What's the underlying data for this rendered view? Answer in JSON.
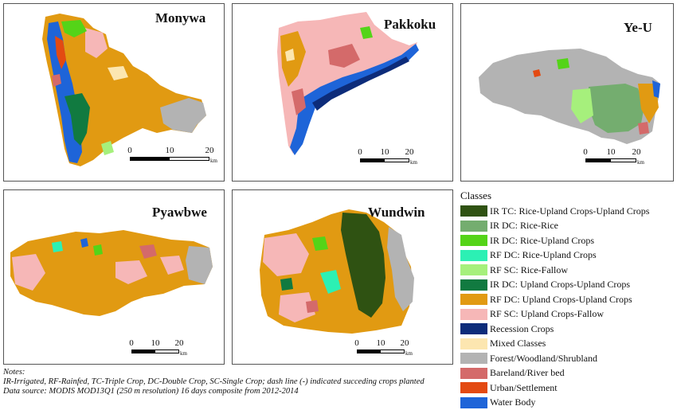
{
  "panels": [
    {
      "name": "Monywa",
      "scale": [
        "0",
        "10",
        "20"
      ],
      "unit": "km"
    },
    {
      "name": "Pakkoku",
      "scale": [
        "0",
        "10",
        "20"
      ],
      "unit": "km"
    },
    {
      "name": "Ye-U",
      "scale": [
        "0",
        "10",
        "20"
      ],
      "unit": "km"
    },
    {
      "name": "Pyawbwe",
      "scale": [
        "0",
        "10",
        "20"
      ],
      "unit": "km"
    },
    {
      "name": "Wundwin",
      "scale": [
        "0",
        "10",
        "20"
      ],
      "unit": "km"
    }
  ],
  "legend": {
    "title": "Classes",
    "items": [
      {
        "label": "IR TC: Rice-Upland Crops-Upland Crops",
        "color": "#2f5212"
      },
      {
        "label": "IR DC: Rice-Rice",
        "color": "#74ad6f"
      },
      {
        "label": "IR DC: Rice-Upland Crops",
        "color": "#54d418"
      },
      {
        "label": "RF DC: Rice-Upland Crops",
        "color": "#2cf0b4"
      },
      {
        "label": "RF SC: Rice-Fallow",
        "color": "#a6f07c"
      },
      {
        "label": "IR DC: Upland Crops-Upland Crops",
        "color": "#117a40"
      },
      {
        "label": "RF DC: Upland Crops-Upland Crops",
        "color": "#e19a12"
      },
      {
        "label": "RF SC: Upland Crops-Fallow",
        "color": "#f6b7b7"
      },
      {
        "label": "Recession Crops",
        "color": "#0d2c7a"
      },
      {
        "label": "Mixed Classes",
        "color": "#fce6b0"
      },
      {
        "label": "Forest/Woodland/Shrubland",
        "color": "#b3b3b3"
      },
      {
        "label": "Bareland/River bed",
        "color": "#d46a6a"
      },
      {
        "label": "Urban/Settlement",
        "color": "#e34a12"
      },
      {
        "label": "Water Body",
        "color": "#1e64d8"
      }
    ]
  },
  "notes": {
    "heading": "Notes:",
    "line1": "IR-Irrigated, RF-Rainfed, TC-Triple Crop, DC-Double Crop, SC-Single Crop; dash line (-) indicated succeding crops planted",
    "line2": "Data source: MODIS MOD13Q1 (250 m resolution) 16 days composite from 2012-2014"
  }
}
